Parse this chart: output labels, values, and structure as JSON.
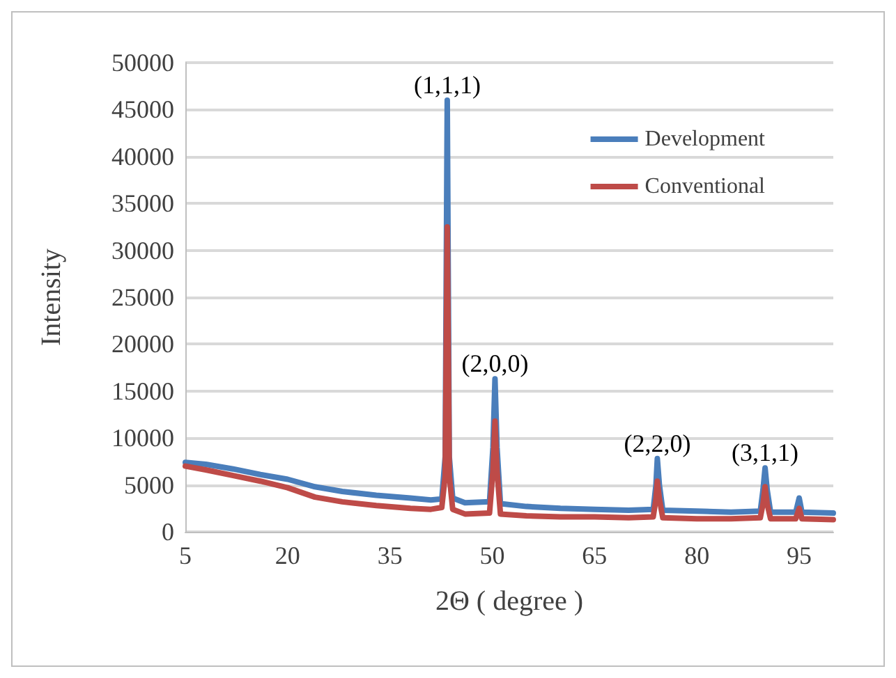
{
  "chart_data": {
    "type": "line",
    "xlabel": "2Θ ( degree )",
    "ylabel": "Intensity",
    "xlim": [
      5,
      100
    ],
    "xticks": [
      5,
      20,
      35,
      50,
      65,
      80,
      95
    ],
    "ylim": [
      0,
      50000
    ],
    "yticks": [
      0,
      5000,
      10000,
      15000,
      20000,
      25000,
      30000,
      35000,
      40000,
      45000,
      50000
    ],
    "grid": "y",
    "legend": "top right",
    "marker": "none",
    "line_style": "solid",
    "series": [
      {
        "name": "Development",
        "color": "#4a7ebb",
        "x": [
          5,
          8,
          12,
          16,
          20,
          24,
          28,
          33,
          38,
          41,
          42.6,
          43.1,
          43.4,
          43.7,
          44.2,
          46,
          49.6,
          50.1,
          50.4,
          50.7,
          51.2,
          55,
          60,
          65,
          70,
          73.6,
          74,
          74.2,
          74.5,
          75,
          80,
          85,
          89.3,
          89.7,
          90,
          90.3,
          90.8,
          94.5,
          95,
          95.4,
          100
        ],
        "values": [
          7400,
          7200,
          6700,
          6100,
          5600,
          4800,
          4300,
          3900,
          3600,
          3400,
          3500,
          8000,
          46000,
          8000,
          3600,
          3100,
          3200,
          9000,
          16300,
          9000,
          3000,
          2700,
          2500,
          2400,
          2300,
          2400,
          5000,
          7800,
          5000,
          2300,
          2200,
          2100,
          2200,
          4500,
          6800,
          4500,
          2100,
          2100,
          3600,
          2100,
          2000
        ]
      },
      {
        "name": "Conventional",
        "color": "#be4b48",
        "x": [
          5,
          8,
          12,
          16,
          20,
          24,
          28,
          33,
          38,
          41,
          42.6,
          43.1,
          43.4,
          43.7,
          44.2,
          46,
          49.6,
          50.1,
          50.4,
          50.7,
          51.2,
          55,
          60,
          65,
          70,
          73.6,
          74,
          74.2,
          74.5,
          75,
          80,
          85,
          89.3,
          89.7,
          90,
          90.3,
          90.8,
          94.5,
          95,
          95.4,
          100
        ],
        "values": [
          7000,
          6600,
          6000,
          5400,
          4700,
          3700,
          3200,
          2800,
          2500,
          2400,
          2600,
          6000,
          32500,
          6000,
          2400,
          1900,
          2000,
          6500,
          11800,
          6500,
          1900,
          1700,
          1600,
          1600,
          1500,
          1600,
          3500,
          5400,
          3500,
          1500,
          1400,
          1400,
          1500,
          3000,
          4800,
          3000,
          1400,
          1400,
          2500,
          1400,
          1300
        ]
      }
    ],
    "annotations": [
      {
        "text": "(1,1,1)",
        "x": 43.4,
        "y": 46000
      },
      {
        "text": "(2,0,0)",
        "x": 50.4,
        "y": 16300
      },
      {
        "text": "(2,2,0)",
        "x": 74.2,
        "y": 7800
      },
      {
        "text": "(3,1,1)",
        "x": 90,
        "y": 6800
      }
    ]
  }
}
